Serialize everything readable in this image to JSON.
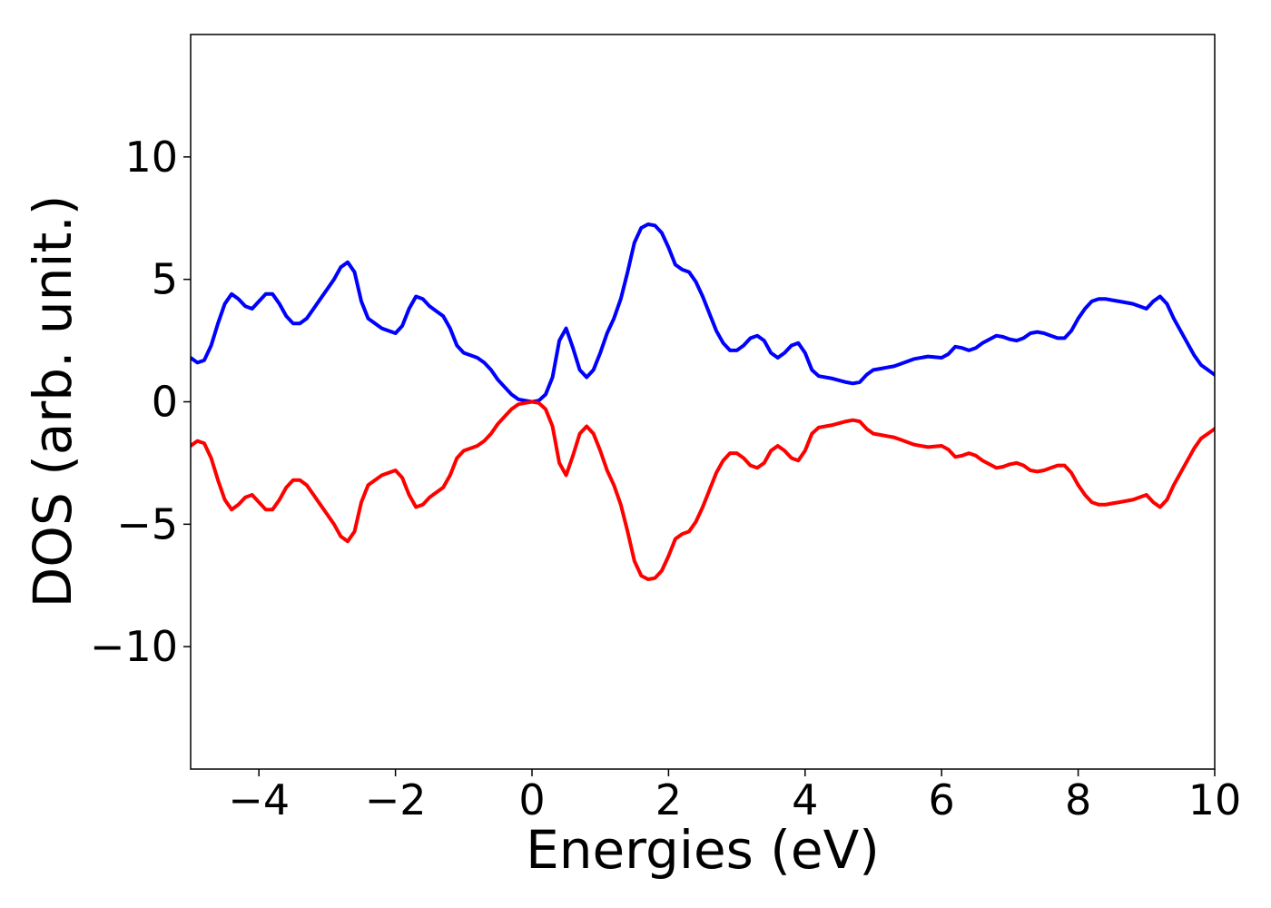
{
  "chart_data": {
    "type": "line",
    "title": "",
    "xlabel": "Energies (eV)",
    "ylabel": "DOS (arb. unit.)",
    "xlim": [
      -5,
      10
    ],
    "ylim": [
      -15,
      15
    ],
    "xticks": [
      -4,
      -2,
      0,
      2,
      4,
      6,
      8,
      10
    ],
    "xtick_labels": [
      "−4",
      "−2",
      "0",
      "2",
      "4",
      "6",
      "8",
      "10"
    ],
    "yticks": [
      -10,
      -5,
      0,
      5,
      10
    ],
    "ytick_labels": [
      "−10",
      "−5",
      "0",
      "5",
      "10"
    ],
    "grid": false,
    "legend": false,
    "series": [
      {
        "color": "#0000ff",
        "x": [
          -5.0,
          -4.9,
          -4.8,
          -4.7,
          -4.6,
          -4.5,
          -4.4,
          -4.3,
          -4.2,
          -4.1,
          -4.0,
          -3.9,
          -3.8,
          -3.7,
          -3.6,
          -3.5,
          -3.4,
          -3.3,
          -3.2,
          -3.1,
          -3.0,
          -2.9,
          -2.8,
          -2.7,
          -2.6,
          -2.5,
          -2.4,
          -2.2,
          -2.0,
          -1.9,
          -1.8,
          -1.7,
          -1.6,
          -1.5,
          -1.4,
          -1.3,
          -1.2,
          -1.1,
          -1.0,
          -0.9,
          -0.8,
          -0.7,
          -0.6,
          -0.5,
          -0.4,
          -0.3,
          -0.2,
          -0.1,
          0.0,
          0.1,
          0.2,
          0.3,
          0.4,
          0.5,
          0.6,
          0.7,
          0.8,
          0.9,
          1.0,
          1.1,
          1.2,
          1.3,
          1.4,
          1.5,
          1.6,
          1.7,
          1.8,
          1.9,
          2.0,
          2.1,
          2.2,
          2.3,
          2.4,
          2.5,
          2.6,
          2.7,
          2.8,
          2.9,
          3.0,
          3.1,
          3.2,
          3.3,
          3.4,
          3.5,
          3.6,
          3.7,
          3.8,
          3.9,
          4.0,
          4.1,
          4.2,
          4.4,
          4.6,
          4.7,
          4.8,
          4.9,
          5.0,
          5.1,
          5.2,
          5.3,
          5.4,
          5.6,
          5.8,
          6.0,
          6.1,
          6.2,
          6.3,
          6.4,
          6.5,
          6.6,
          6.8,
          6.9,
          7.0,
          7.1,
          7.2,
          7.3,
          7.4,
          7.5,
          7.6,
          7.7,
          7.8,
          7.9,
          8.0,
          8.1,
          8.2,
          8.3,
          8.4,
          8.5,
          8.6,
          8.8,
          9.0,
          9.1,
          9.2,
          9.3,
          9.4,
          9.5,
          9.6,
          9.7,
          9.8,
          9.9,
          10.0
        ],
        "y": [
          1.8,
          1.6,
          1.7,
          2.3,
          3.2,
          4.0,
          4.4,
          4.2,
          3.9,
          3.8,
          4.1,
          4.4,
          4.4,
          4.0,
          3.5,
          3.2,
          3.2,
          3.4,
          3.8,
          4.2,
          4.6,
          5.0,
          5.5,
          5.7,
          5.3,
          4.1,
          3.4,
          3.0,
          2.8,
          3.1,
          3.8,
          4.3,
          4.2,
          3.9,
          3.7,
          3.5,
          3.0,
          2.3,
          2.0,
          1.9,
          1.8,
          1.6,
          1.3,
          0.9,
          0.6,
          0.3,
          0.1,
          0.05,
          0.0,
          0.05,
          0.3,
          1.0,
          2.5,
          3.0,
          2.2,
          1.3,
          1.0,
          1.3,
          2.0,
          2.8,
          3.4,
          4.2,
          5.3,
          6.5,
          7.1,
          7.25,
          7.2,
          6.9,
          6.3,
          5.6,
          5.4,
          5.3,
          4.9,
          4.3,
          3.6,
          2.9,
          2.4,
          2.1,
          2.1,
          2.3,
          2.6,
          2.7,
          2.5,
          2.0,
          1.8,
          2.0,
          2.3,
          2.4,
          2.0,
          1.3,
          1.05,
          0.95,
          0.8,
          0.75,
          0.8,
          1.1,
          1.3,
          1.35,
          1.4,
          1.45,
          1.55,
          1.75,
          1.85,
          1.8,
          1.95,
          2.25,
          2.2,
          2.1,
          2.2,
          2.4,
          2.7,
          2.65,
          2.55,
          2.5,
          2.6,
          2.8,
          2.85,
          2.8,
          2.7,
          2.6,
          2.6,
          2.9,
          3.4,
          3.8,
          4.1,
          4.2,
          4.2,
          4.15,
          4.1,
          4.0,
          3.8,
          4.1,
          4.3,
          4.0,
          3.4,
          2.9,
          2.4,
          1.9,
          1.5,
          1.3,
          1.1
        ]
      },
      {
        "color": "#ff0000",
        "x": [
          -5.0,
          -4.9,
          -4.8,
          -4.7,
          -4.6,
          -4.5,
          -4.4,
          -4.3,
          -4.2,
          -4.1,
          -4.0,
          -3.9,
          -3.8,
          -3.7,
          -3.6,
          -3.5,
          -3.4,
          -3.3,
          -3.2,
          -3.1,
          -3.0,
          -2.9,
          -2.8,
          -2.7,
          -2.6,
          -2.5,
          -2.4,
          -2.2,
          -2.0,
          -1.9,
          -1.8,
          -1.7,
          -1.6,
          -1.5,
          -1.4,
          -1.3,
          -1.2,
          -1.1,
          -1.0,
          -0.9,
          -0.8,
          -0.7,
          -0.6,
          -0.5,
          -0.4,
          -0.3,
          -0.2,
          -0.1,
          0.0,
          0.1,
          0.2,
          0.3,
          0.4,
          0.5,
          0.6,
          0.7,
          0.8,
          0.9,
          1.0,
          1.1,
          1.2,
          1.3,
          1.4,
          1.5,
          1.6,
          1.7,
          1.8,
          1.9,
          2.0,
          2.1,
          2.2,
          2.3,
          2.4,
          2.5,
          2.6,
          2.7,
          2.8,
          2.9,
          3.0,
          3.1,
          3.2,
          3.3,
          3.4,
          3.5,
          3.6,
          3.7,
          3.8,
          3.9,
          4.0,
          4.1,
          4.2,
          4.4,
          4.6,
          4.7,
          4.8,
          4.9,
          5.0,
          5.1,
          5.2,
          5.3,
          5.4,
          5.6,
          5.8,
          6.0,
          6.1,
          6.2,
          6.3,
          6.4,
          6.5,
          6.6,
          6.8,
          6.9,
          7.0,
          7.1,
          7.2,
          7.3,
          7.4,
          7.5,
          7.6,
          7.7,
          7.8,
          7.9,
          8.0,
          8.1,
          8.2,
          8.3,
          8.4,
          8.5,
          8.6,
          8.8,
          9.0,
          9.1,
          9.2,
          9.3,
          9.4,
          9.5,
          9.6,
          9.7,
          9.8,
          9.9,
          10.0
        ],
        "y": [
          -1.8,
          -1.6,
          -1.7,
          -2.3,
          -3.2,
          -4.0,
          -4.4,
          -4.2,
          -3.9,
          -3.8,
          -4.1,
          -4.4,
          -4.4,
          -4.0,
          -3.5,
          -3.2,
          -3.2,
          -3.4,
          -3.8,
          -4.2,
          -4.6,
          -5.0,
          -5.5,
          -5.7,
          -5.3,
          -4.1,
          -3.4,
          -3.0,
          -2.8,
          -3.1,
          -3.8,
          -4.3,
          -4.2,
          -3.9,
          -3.7,
          -3.5,
          -3.0,
          -2.3,
          -2.0,
          -1.9,
          -1.8,
          -1.6,
          -1.3,
          -0.9,
          -0.6,
          -0.3,
          -0.1,
          -0.05,
          0.0,
          -0.05,
          -0.3,
          -1.0,
          -2.5,
          -3.0,
          -2.2,
          -1.3,
          -1.0,
          -1.3,
          -2.0,
          -2.8,
          -3.4,
          -4.2,
          -5.3,
          -6.5,
          -7.1,
          -7.25,
          -7.2,
          -6.9,
          -6.3,
          -5.6,
          -5.4,
          -5.3,
          -4.9,
          -4.3,
          -3.6,
          -2.9,
          -2.4,
          -2.1,
          -2.1,
          -2.3,
          -2.6,
          -2.7,
          -2.5,
          -2.0,
          -1.8,
          -2.0,
          -2.3,
          -2.4,
          -2.0,
          -1.3,
          -1.05,
          -0.95,
          -0.8,
          -0.75,
          -0.8,
          -1.1,
          -1.3,
          -1.35,
          -1.4,
          -1.45,
          -1.55,
          -1.75,
          -1.85,
          -1.8,
          -1.95,
          -2.25,
          -2.2,
          -2.1,
          -2.2,
          -2.4,
          -2.7,
          -2.65,
          -2.55,
          -2.5,
          -2.6,
          -2.8,
          -2.85,
          -2.8,
          -2.7,
          -2.6,
          -2.6,
          -2.9,
          -3.4,
          -3.8,
          -4.1,
          -4.2,
          -4.2,
          -4.15,
          -4.1,
          -4.0,
          -3.8,
          -4.1,
          -4.3,
          -4.0,
          -3.4,
          -2.9,
          -2.4,
          -1.9,
          -1.5,
          -1.3,
          -1.1
        ]
      }
    ]
  }
}
